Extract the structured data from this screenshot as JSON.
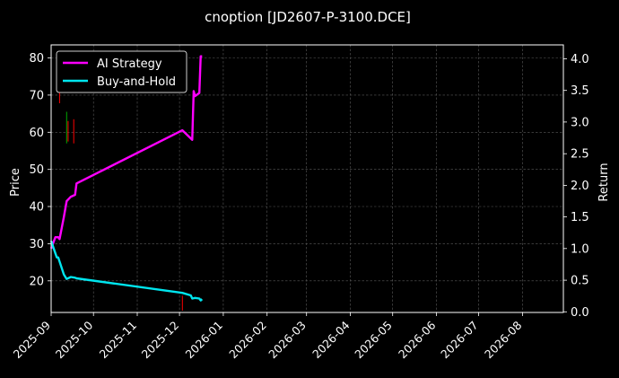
{
  "chart_data": {
    "type": "line",
    "title": "cnoption [JD2607-P-3100.DCE]",
    "ylabel": "Price",
    "y2label": "Return",
    "grid": true,
    "legend_position": "top-left",
    "xlim": [
      "2025-09-01",
      "2026-08-30"
    ],
    "ylim": [
      11.5,
      83.5
    ],
    "y2lim": [
      -0.01,
      4.22
    ],
    "x_ticks": [
      "2025-09-01",
      "2025-10-01",
      "2025-11-01",
      "2025-12-01",
      "2026-01-01",
      "2026-02-01",
      "2026-03-01",
      "2026-04-01",
      "2026-05-01",
      "2026-06-01",
      "2026-07-01",
      "2026-08-01"
    ],
    "x_tick_labels": [
      "2025-09",
      "2025-10",
      "2025-11",
      "2025-12",
      "2026-01",
      "2026-02",
      "2026-03",
      "2026-04",
      "2026-05",
      "2026-06",
      "2026-07",
      "2026-08"
    ],
    "y_ticks": [
      20,
      30,
      40,
      50,
      60,
      70,
      80
    ],
    "y_tick_labels": [
      "20",
      "30",
      "40",
      "50",
      "60",
      "70",
      "80"
    ],
    "y2_ticks": [
      0.0,
      0.5,
      1.0,
      1.5,
      2.0,
      2.5,
      3.0,
      3.5,
      4.0
    ],
    "y2_tick_labels": [
      "0.0",
      "0.5",
      "1.0",
      "1.5",
      "2.0",
      "2.5",
      "3.0",
      "3.5",
      "4.0"
    ],
    "series": [
      {
        "name": "AI Strategy",
        "axis": "right",
        "color": "#ff00ff",
        "x": [
          "2025-09-01",
          "2025-09-04",
          "2025-09-06",
          "2025-09-07",
          "2025-09-10",
          "2025-09-12",
          "2025-09-15",
          "2025-09-18",
          "2025-09-19",
          "2025-12-03",
          "2025-12-10",
          "2025-12-11",
          "2025-12-12",
          "2025-12-15",
          "2025-12-16",
          "2025-12-17"
        ],
        "values": [
          1.0,
          1.18,
          1.18,
          1.15,
          1.5,
          1.75,
          1.82,
          1.85,
          2.03,
          2.87,
          2.72,
          3.49,
          3.41,
          3.46,
          4.04,
          4.04
        ]
      },
      {
        "name": "Buy-and-Hold",
        "axis": "right",
        "color": "#00e5ee",
        "x": [
          "2025-09-01",
          "2025-09-05",
          "2025-09-06",
          "2025-09-10",
          "2025-09-12",
          "2025-09-15",
          "2025-09-18",
          "2025-09-19",
          "2025-12-03",
          "2025-12-09",
          "2025-12-10",
          "2025-12-12",
          "2025-12-15",
          "2025-12-16",
          "2025-12-17"
        ],
        "values": [
          1.12,
          0.86,
          0.86,
          0.59,
          0.52,
          0.55,
          0.54,
          0.53,
          0.3,
          0.26,
          0.21,
          0.22,
          0.21,
          0.18,
          0.2
        ]
      }
    ],
    "bars": {
      "axis": "left",
      "items": [
        {
          "x": "2025-09-07",
          "low": 67.8,
          "high": 71.0,
          "color": "#ff0000"
        },
        {
          "x": "2025-09-12",
          "low": 57.0,
          "high": 65.5,
          "color": "#00aa00"
        },
        {
          "x": "2025-09-13",
          "low": 57.5,
          "high": 63.0,
          "color": "#ff0000"
        },
        {
          "x": "2025-09-17",
          "low": 57.0,
          "high": 63.5,
          "color": "#ff0000"
        },
        {
          "x": "2025-12-03",
          "low": 12.0,
          "high": 16.0,
          "color": "#ff0000"
        }
      ]
    },
    "background_color": "#000000",
    "text_color": "#ffffff"
  }
}
